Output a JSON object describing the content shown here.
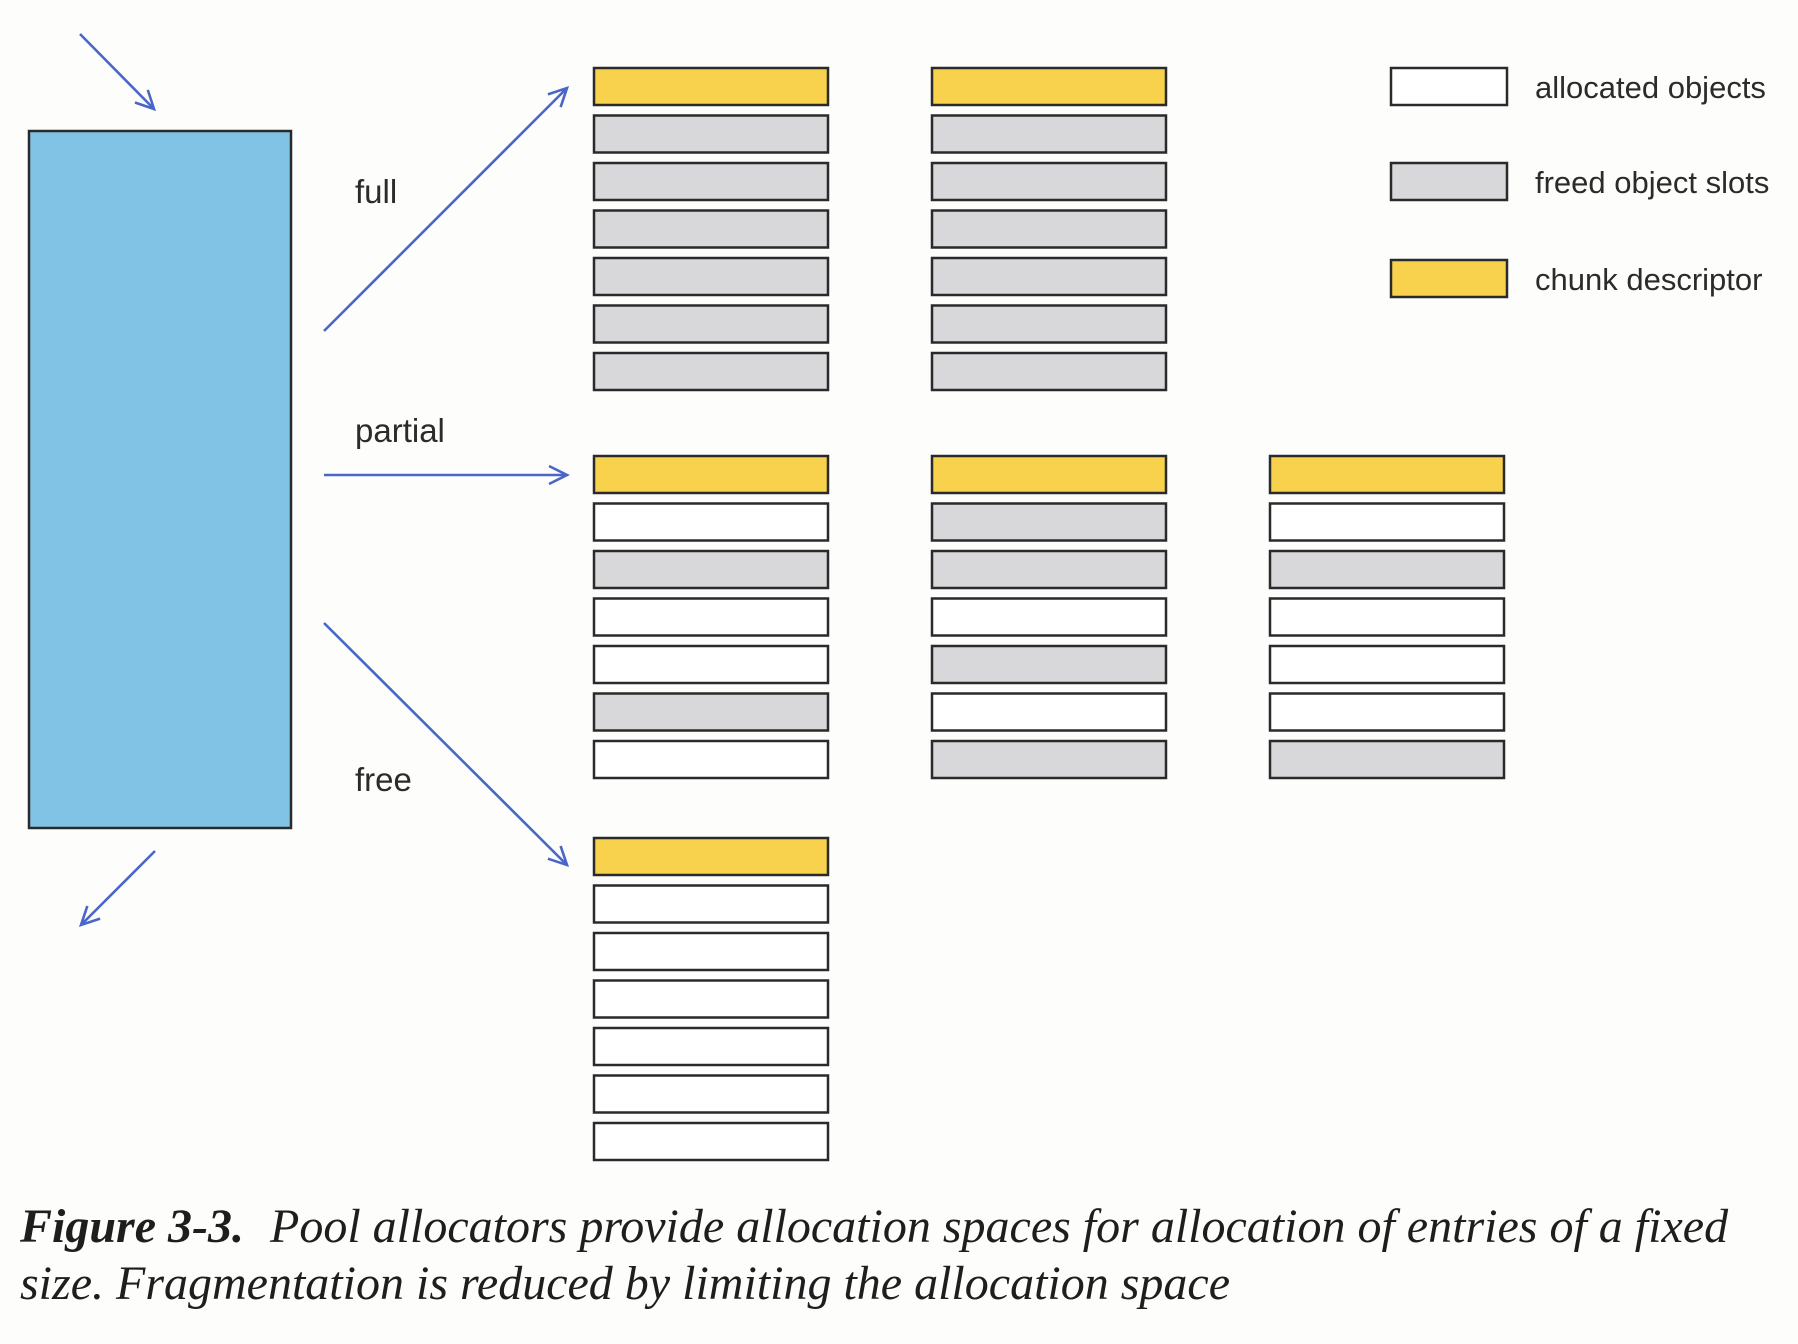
{
  "colors": {
    "pool": "#80c3e4",
    "descriptor": "#f8d24c",
    "allocated": "#ffffff",
    "freed": "#d8d7d9",
    "arrow": "#4a67c7",
    "outline": "#2a2a2a"
  },
  "labels": {
    "full": "full",
    "partial": "partial",
    "free": "free"
  },
  "legend": [
    {
      "kind": "allocated",
      "text": "allocated objects"
    },
    {
      "kind": "freed",
      "text": "freed object slots"
    },
    {
      "kind": "descriptor",
      "text": "chunk descriptor"
    }
  ],
  "chunks": {
    "full": [
      [
        "descriptor",
        "freed",
        "freed",
        "freed",
        "freed",
        "freed",
        "freed"
      ],
      [
        "descriptor",
        "freed",
        "freed",
        "freed",
        "freed",
        "freed",
        "freed"
      ]
    ],
    "partial": [
      [
        "descriptor",
        "allocated",
        "freed",
        "allocated",
        "allocated",
        "freed",
        "allocated"
      ],
      [
        "descriptor",
        "freed",
        "freed",
        "allocated",
        "freed",
        "allocated",
        "freed"
      ],
      [
        "descriptor",
        "allocated",
        "freed",
        "allocated",
        "allocated",
        "allocated",
        "freed"
      ]
    ],
    "free": [
      [
        "descriptor",
        "allocated",
        "allocated",
        "allocated",
        "allocated",
        "allocated",
        "allocated"
      ]
    ]
  },
  "caption": {
    "number": "Figure 3-3.",
    "text": "Pool allocators provide allocation spaces for allocation of entries of a fixed size. Fragmentation is reduced by limiting the allocation space"
  }
}
